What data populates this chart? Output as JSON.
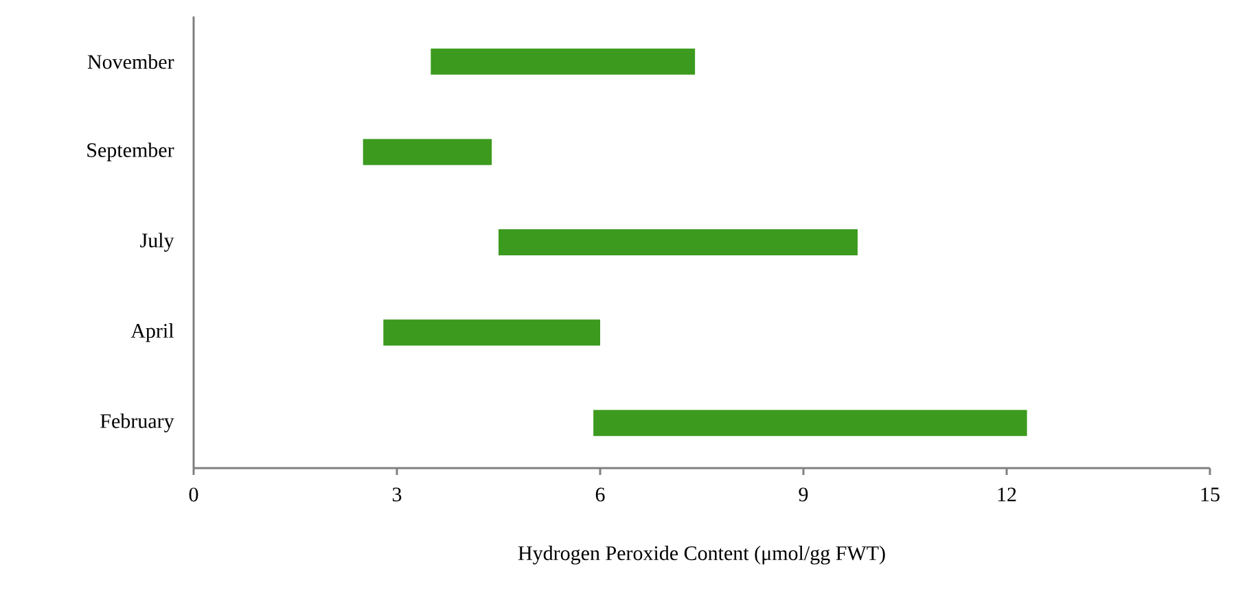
{
  "chart_data": {
    "type": "bar",
    "orientation": "horizontal",
    "xlabel": "Hydrogen Peroxide Content (μmol/gg FWT)",
    "categories": [
      "November",
      "September",
      "July",
      "April",
      "February"
    ],
    "base": [
      3.5,
      2.5,
      4.5,
      2.8,
      5.9
    ],
    "values": [
      3.9,
      1.9,
      5.3,
      3.2,
      6.4
    ],
    "color": "#3c9a1e",
    "xlim": [
      0,
      15
    ],
    "xticks": [
      0,
      3,
      6,
      9,
      12,
      15
    ],
    "grid": false
  }
}
